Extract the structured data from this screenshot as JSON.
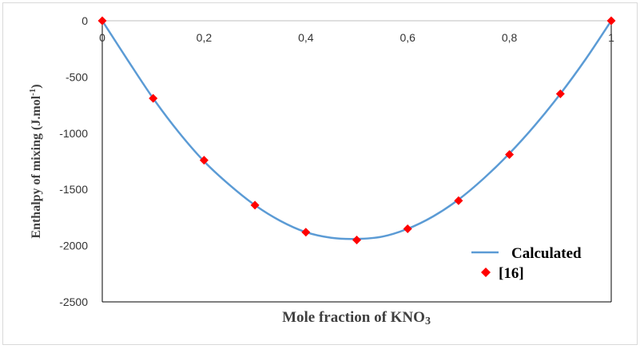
{
  "chart_data": {
    "type": "scatter",
    "title": "",
    "xlabel": "Mole fraction of KNO",
    "xlabel_subscript": "3",
    "ylabel": "Enthalpy of mixing (J.mol",
    "ylabel_superscript": "-1",
    "ylabel_end": ")",
    "xlim": [
      0,
      1
    ],
    "ylim": [
      -2500,
      0
    ],
    "x_ticks": [
      "0",
      "0,2",
      "0,4",
      "0,6",
      "0,8",
      "1"
    ],
    "x_tick_values": [
      0,
      0.2,
      0.4,
      0.6,
      0.8,
      1
    ],
    "y_ticks": [
      "0",
      "-500",
      "-1000",
      "-1500",
      "-2000",
      "-2500"
    ],
    "y_tick_values": [
      0,
      -500,
      -1000,
      -1500,
      -2000,
      -2500
    ],
    "grid": false,
    "legend_position": "bottom-right",
    "series": [
      {
        "name": "Calculated",
        "kind": "line",
        "color": "#5b9bd5",
        "x": [
          0,
          0.05,
          0.1,
          0.15,
          0.2,
          0.25,
          0.3,
          0.35,
          0.4,
          0.45,
          0.5,
          0.55,
          0.6,
          0.65,
          0.7,
          0.75,
          0.8,
          0.85,
          0.9,
          0.95,
          1
        ],
        "y": [
          0,
          -350,
          -690,
          -990,
          -1250,
          -1460,
          -1640,
          -1780,
          -1880,
          -1930,
          -1940,
          -1920,
          -1850,
          -1740,
          -1590,
          -1400,
          -1180,
          -930,
          -650,
          -340,
          0
        ]
      },
      {
        "name": "[16]",
        "kind": "marker",
        "marker": "diamond",
        "color": "#ff0000",
        "x": [
          0,
          0.1,
          0.2,
          0.3,
          0.4,
          0.5,
          0.6,
          0.7,
          0.8,
          0.9,
          1
        ],
        "y": [
          0,
          -690,
          -1240,
          -1640,
          -1880,
          -1950,
          -1850,
          -1600,
          -1190,
          -650,
          0
        ]
      }
    ]
  }
}
